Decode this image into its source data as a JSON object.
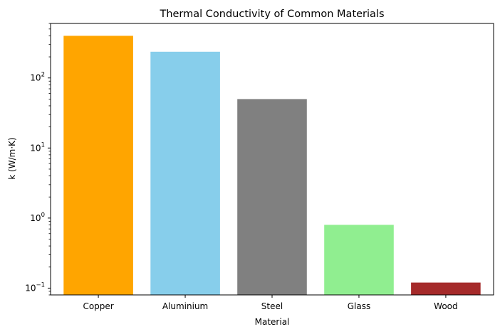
{
  "chart_data": {
    "type": "bar",
    "title": "Thermal Conductivity of Common Materials",
    "xlabel": "Material",
    "ylabel": "k (W/m·K)",
    "yscale": "log",
    "ylim": [
      0.08,
      600
    ],
    "categories": [
      "Copper",
      "Aluminium",
      "Steel",
      "Glass",
      "Wood"
    ],
    "values": [
      400,
      237,
      50,
      0.8,
      0.12
    ],
    "colors": [
      "#FFA500",
      "#87CEEB",
      "#808080",
      "#90EE90",
      "#A52A2A"
    ],
    "yticks": [
      {
        "value": 0.1,
        "base": "10",
        "exp": "−1"
      },
      {
        "value": 1,
        "base": "10",
        "exp": "0"
      },
      {
        "value": 10,
        "base": "10",
        "exp": "1"
      },
      {
        "value": 100,
        "base": "10",
        "exp": "2"
      }
    ],
    "grid": false,
    "legend": "none"
  }
}
